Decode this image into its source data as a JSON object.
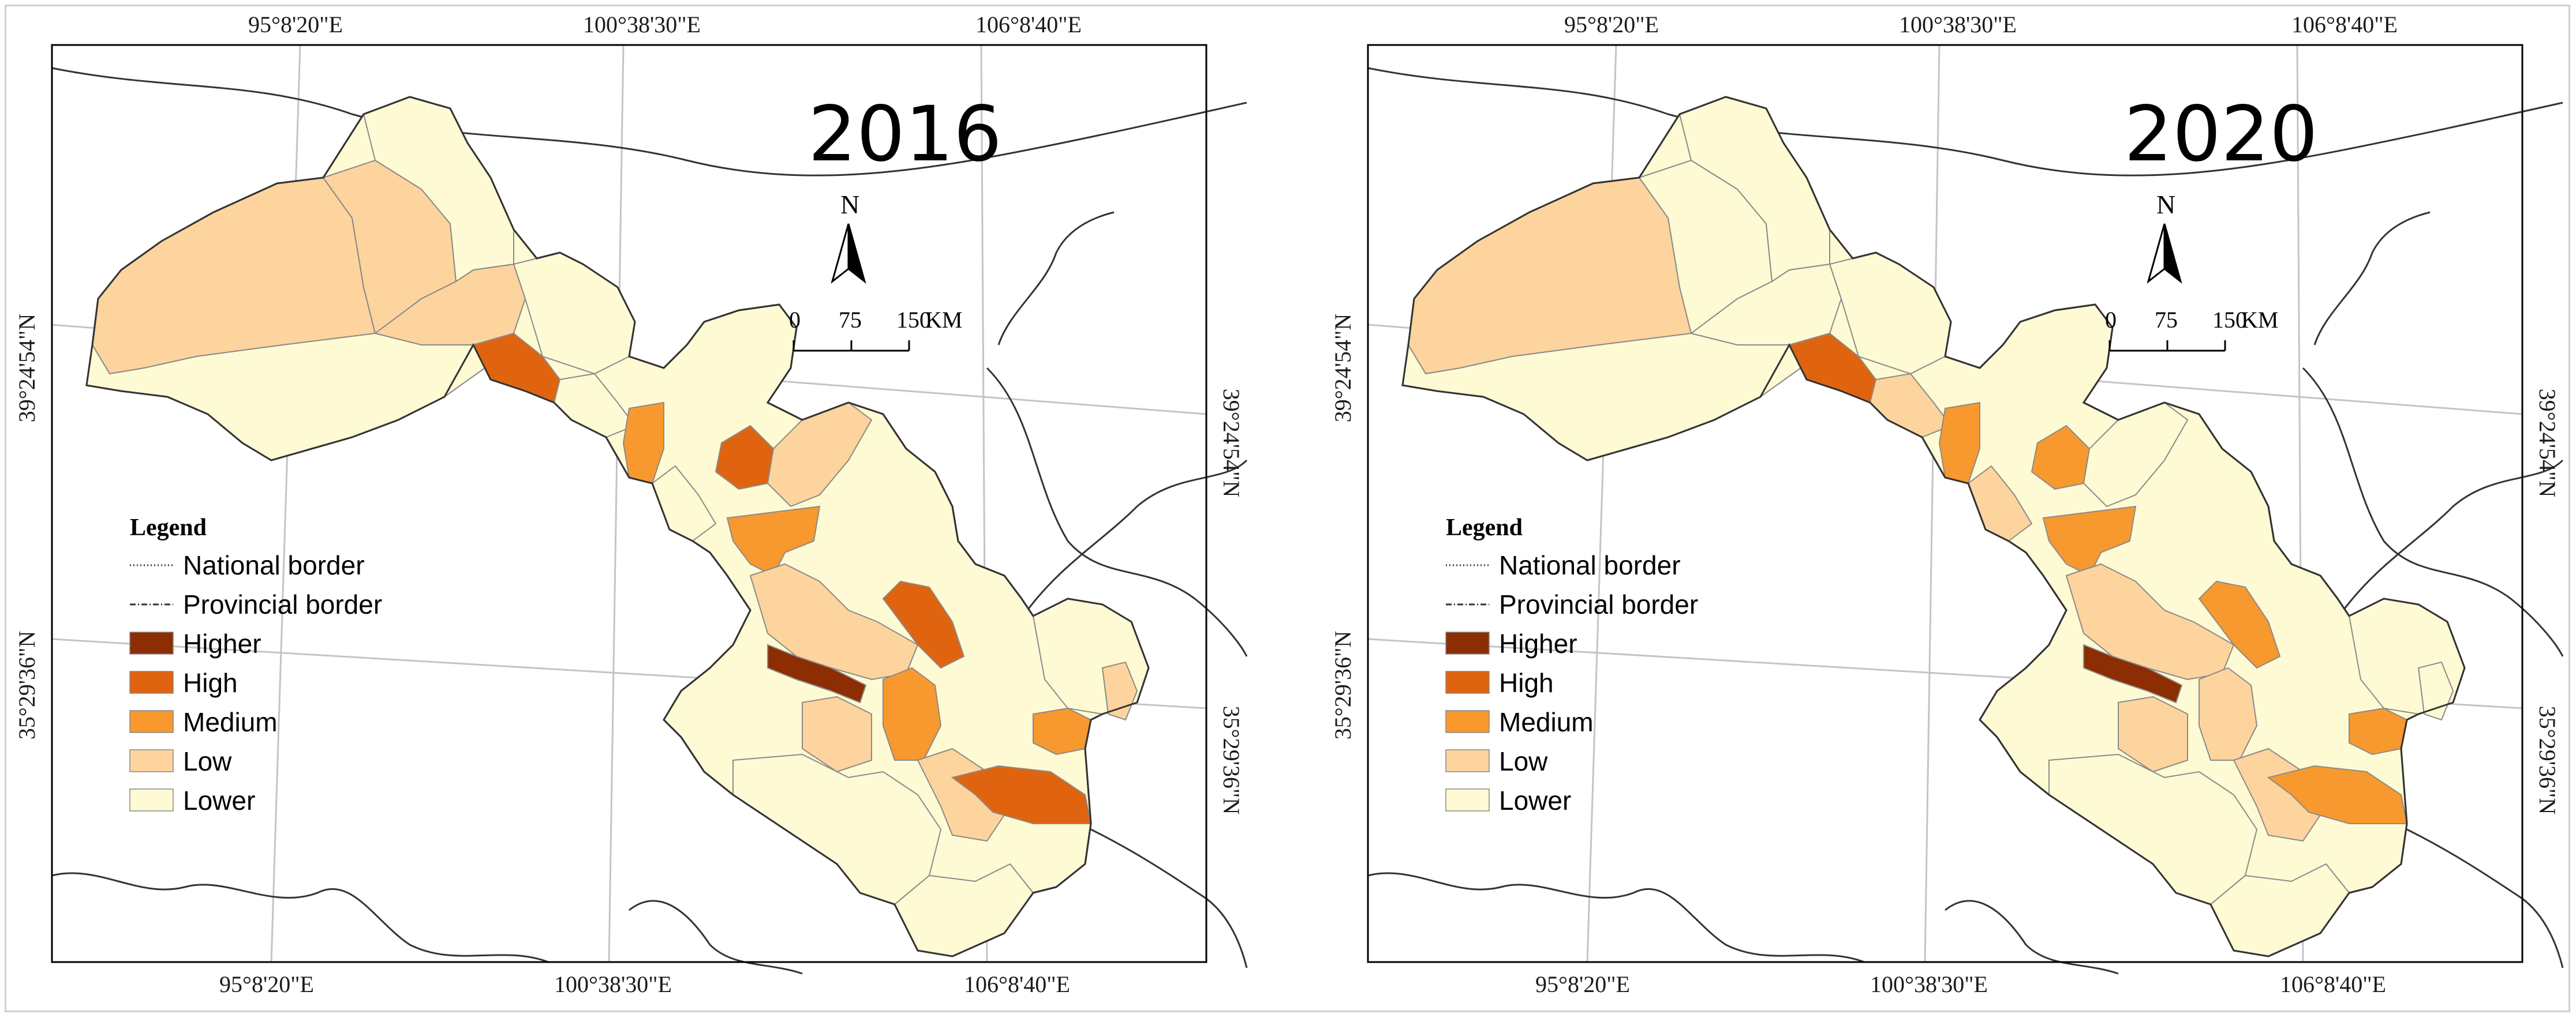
{
  "colors": {
    "higher": "#8c2d04",
    "high": "#e0640f",
    "medium": "#f7992f",
    "low": "#fdd49e",
    "lower": "#fefad4",
    "border": "#555555",
    "frame": "#000000"
  },
  "coords": {
    "top": [
      "95°8'20\"E",
      "100°38'30\"E",
      "106°8'40\"E"
    ],
    "bottom": [
      "95°8'20\"E",
      "100°38'30\"E",
      "106°8'40\"E"
    ],
    "left": [
      "39°24'54\"N",
      "35°29'36\"N"
    ],
    "right": [
      "39°24'54\"N",
      "35°29'36\"N"
    ]
  },
  "north": "N",
  "scale": {
    "ticks": [
      "0",
      "75",
      "150"
    ],
    "unit": "KM"
  },
  "legend": {
    "title": "Legend",
    "items": [
      {
        "label": "National border",
        "kind": "line-dot",
        "color": "#333333"
      },
      {
        "label": "Provincial border",
        "kind": "line-dashdot",
        "color": "#333333"
      },
      {
        "label": "Higher",
        "kind": "swatch",
        "color": "#8c2d04"
      },
      {
        "label": "High",
        "kind": "swatch",
        "color": "#e0640f"
      },
      {
        "label": "Medium",
        "kind": "swatch",
        "color": "#f7992f"
      },
      {
        "label": "Low",
        "kind": "swatch",
        "color": "#fdd49e"
      },
      {
        "label": "Lower",
        "kind": "swatch",
        "color": "#fefad4"
      }
    ]
  },
  "maps": [
    {
      "title": "2016",
      "regions": [
        {
          "id": "northwest-a",
          "level": "low"
        },
        {
          "id": "northwest-b",
          "level": "low"
        },
        {
          "id": "northwest-c",
          "level": "low"
        },
        {
          "id": "north-tall",
          "level": "lower"
        },
        {
          "id": "west-strip",
          "level": "lower"
        },
        {
          "id": "corridor-1",
          "level": "high"
        },
        {
          "id": "corridor-2",
          "level": "lower"
        },
        {
          "id": "corridor-3",
          "level": "medium"
        },
        {
          "id": "corridor-4",
          "level": "lower"
        },
        {
          "id": "north-blob",
          "level": "lower"
        },
        {
          "id": "mid-high",
          "level": "high"
        },
        {
          "id": "mid-low",
          "level": "low"
        },
        {
          "id": "mid-medium",
          "level": "medium"
        },
        {
          "id": "center-a",
          "level": "low"
        },
        {
          "id": "center-b",
          "level": "high"
        },
        {
          "id": "center-higher",
          "level": "higher"
        },
        {
          "id": "center-medium",
          "level": "medium"
        },
        {
          "id": "center-c",
          "level": "low"
        },
        {
          "id": "south-a",
          "level": "lower"
        },
        {
          "id": "south-b",
          "level": "low"
        },
        {
          "id": "southeast-high",
          "level": "high"
        },
        {
          "id": "east-a",
          "level": "lower"
        },
        {
          "id": "east-medium",
          "level": "medium"
        },
        {
          "id": "east-low",
          "level": "low"
        },
        {
          "id": "south-tail",
          "level": "lower"
        }
      ]
    },
    {
      "title": "2020",
      "regions": [
        {
          "id": "northwest-a",
          "level": "low"
        },
        {
          "id": "northwest-b",
          "level": "lower"
        },
        {
          "id": "northwest-c",
          "level": "lower"
        },
        {
          "id": "north-tall",
          "level": "lower"
        },
        {
          "id": "west-strip",
          "level": "lower"
        },
        {
          "id": "corridor-1",
          "level": "high"
        },
        {
          "id": "corridor-2",
          "level": "low"
        },
        {
          "id": "corridor-3",
          "level": "medium"
        },
        {
          "id": "corridor-4",
          "level": "low"
        },
        {
          "id": "north-blob",
          "level": "lower"
        },
        {
          "id": "mid-high",
          "level": "medium"
        },
        {
          "id": "mid-low",
          "level": "lower"
        },
        {
          "id": "mid-medium",
          "level": "medium"
        },
        {
          "id": "center-a",
          "level": "low"
        },
        {
          "id": "center-b",
          "level": "medium"
        },
        {
          "id": "center-higher",
          "level": "higher"
        },
        {
          "id": "center-medium",
          "level": "low"
        },
        {
          "id": "center-c",
          "level": "low"
        },
        {
          "id": "south-a",
          "level": "lower"
        },
        {
          "id": "south-b",
          "level": "low"
        },
        {
          "id": "southeast-high",
          "level": "medium"
        },
        {
          "id": "east-a",
          "level": "lower"
        },
        {
          "id": "east-medium",
          "level": "medium"
        },
        {
          "id": "east-low",
          "level": "lower"
        },
        {
          "id": "south-tail",
          "level": "lower"
        }
      ]
    }
  ]
}
